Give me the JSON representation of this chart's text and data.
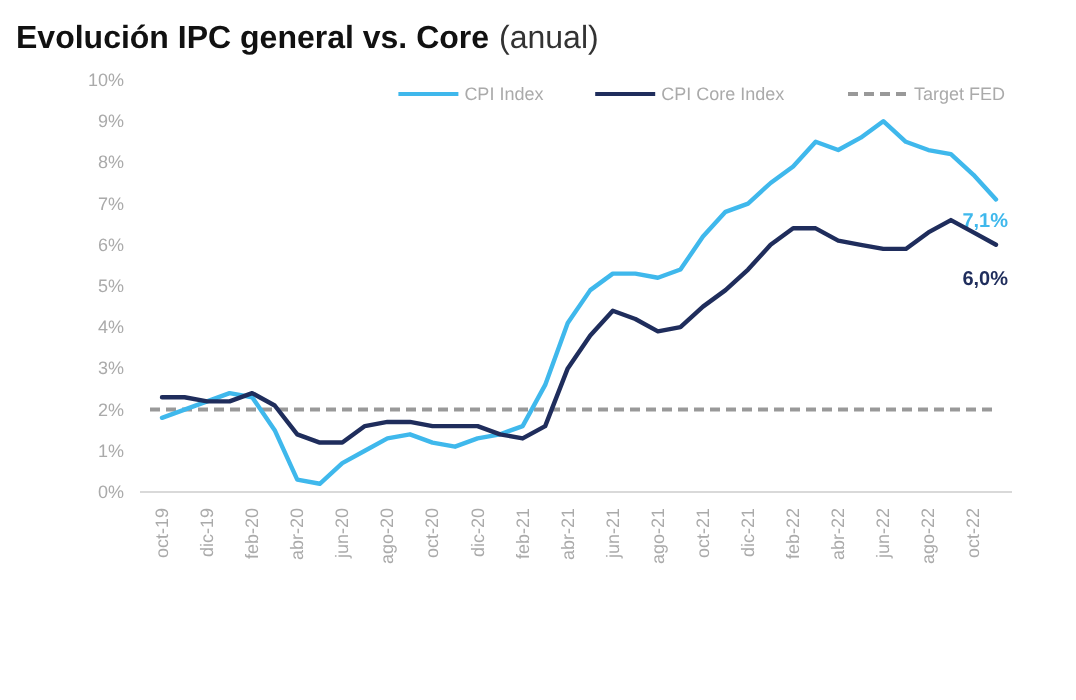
{
  "chart_data": {
    "type": "line",
    "title": "Evolución IPC general vs. Core",
    "subtitle": "(anual)",
    "categories": [
      "oct-19",
      null,
      "dic-19",
      null,
      "feb-20",
      null,
      "abr-20",
      null,
      "jun-20",
      null,
      "ago-20",
      null,
      "oct-20",
      null,
      "dic-20",
      null,
      "feb-21",
      null,
      "abr-21",
      null,
      "jun-21",
      null,
      "ago-21",
      null,
      "oct-21",
      null,
      "dic-21",
      null,
      "feb-22",
      null,
      "abr-22",
      null,
      "jun-22",
      null,
      "ago-22",
      null,
      "oct-22",
      null
    ],
    "series": [
      {
        "name": "CPI Index",
        "color": "#3fb8ec",
        "values": [
          1.8,
          2.0,
          2.2,
          2.4,
          2.3,
          1.5,
          0.3,
          0.2,
          0.7,
          1.0,
          1.3,
          1.4,
          1.2,
          1.1,
          1.3,
          1.4,
          1.6,
          2.6,
          4.1,
          4.9,
          5.3,
          5.3,
          5.2,
          5.4,
          6.2,
          6.8,
          7.0,
          7.5,
          7.9,
          8.5,
          8.3,
          8.6,
          9.0,
          8.5,
          8.3,
          8.2,
          7.7,
          7.1
        ],
        "value_labels": [
          null,
          null,
          null,
          null,
          null,
          null,
          null,
          null,
          null,
          null,
          null,
          null,
          null,
          null,
          null,
          null,
          null,
          null,
          null,
          null,
          null,
          null,
          null,
          null,
          null,
          null,
          null,
          null,
          null,
          null,
          null,
          null,
          null,
          null,
          null,
          null,
          null,
          "7,1%"
        ]
      },
      {
        "name": "CPI Core Index",
        "color": "#1f2d5c",
        "values": [
          2.3,
          2.3,
          2.2,
          2.2,
          2.4,
          2.1,
          1.4,
          1.2,
          1.2,
          1.6,
          1.7,
          1.7,
          1.6,
          1.6,
          1.6,
          1.4,
          1.3,
          1.6,
          3.0,
          3.8,
          4.4,
          4.2,
          3.9,
          4.0,
          4.5,
          4.9,
          5.4,
          6.0,
          6.4,
          6.4,
          6.1,
          6.0,
          5.9,
          5.9,
          6.3,
          6.6,
          6.3,
          6.0
        ],
        "value_labels": [
          null,
          null,
          null,
          null,
          null,
          null,
          null,
          null,
          null,
          null,
          null,
          null,
          null,
          null,
          null,
          null,
          null,
          null,
          null,
          null,
          null,
          null,
          null,
          null,
          null,
          null,
          null,
          null,
          null,
          null,
          null,
          null,
          null,
          null,
          null,
          null,
          null,
          "6,0%"
        ]
      }
    ],
    "ref_lines": [
      {
        "axis": "y",
        "value": 2,
        "label": "Target FED",
        "color": "#999999",
        "line_style": "dashed"
      }
    ],
    "ylim": [
      0,
      10
    ],
    "yticks": [
      {
        "value": 0,
        "label": "0%"
      },
      {
        "value": 1,
        "label": "1%"
      },
      {
        "value": 2,
        "label": "2%"
      },
      {
        "value": 3,
        "label": "3%"
      },
      {
        "value": 4,
        "label": "4%"
      },
      {
        "value": 5,
        "label": "5%"
      },
      {
        "value": 6,
        "label": "6%"
      },
      {
        "value": 7,
        "label": "7%"
      },
      {
        "value": 8,
        "label": "8%"
      },
      {
        "value": 9,
        "label": "9%"
      },
      {
        "value": 10,
        "label": "10%"
      }
    ],
    "grid": false,
    "legend": "top right",
    "marker": "none",
    "line_style": "solid"
  }
}
